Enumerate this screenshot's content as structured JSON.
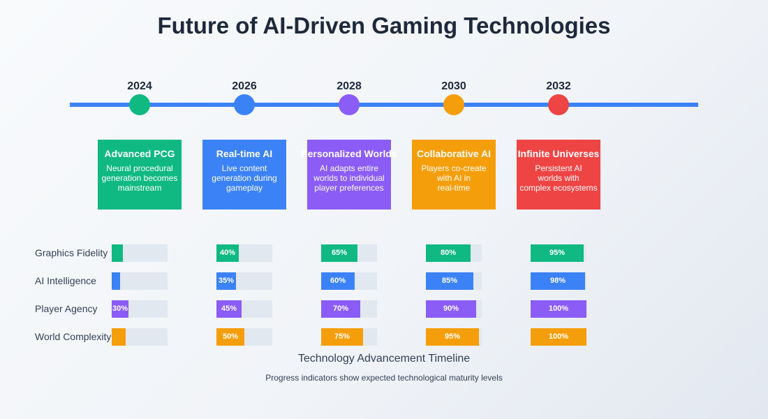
{
  "title": "Future of AI-Driven Gaming Technologies",
  "colors": {
    "green": "#10b981",
    "blue": "#3b82f6",
    "purple": "#8b5cf6",
    "orange": "#f59e0b",
    "red": "#ef4444",
    "track": "#e2e8f0",
    "timeline": "#3b82f6"
  },
  "milestones": [
    {
      "year": "2024",
      "color": "#10b981",
      "title": "Advanced PCG",
      "desc_lines": [
        "Neural procedural",
        "generation becomes",
        "mainstream"
      ]
    },
    {
      "year": "2026",
      "color": "#3b82f6",
      "title": "Real-time AI",
      "desc_lines": [
        "Live content",
        "generation during",
        "gameplay"
      ]
    },
    {
      "year": "2028",
      "color": "#8b5cf6",
      "title": "Personalized Worlds",
      "desc_lines": [
        "AI adapts entire",
        "worlds to individual",
        "player preferences"
      ]
    },
    {
      "year": "2030",
      "color": "#f59e0b",
      "title": "Collaborative AI",
      "desc_lines": [
        "Players co-create",
        "with AI in",
        "real-time"
      ]
    },
    {
      "year": "2032",
      "color": "#ef4444",
      "title": "Infinite Universes",
      "desc_lines": [
        "Persistent AI",
        "worlds with",
        "complex ecosystems"
      ]
    }
  ],
  "metrics": [
    {
      "label": "Graphics Fidelity",
      "color": "#10b981",
      "values": [
        20,
        40,
        65,
        80,
        95
      ],
      "labels": [
        "",
        "40%",
        "65%",
        "80%",
        "95%"
      ]
    },
    {
      "label": "AI Intelligence",
      "color": "#3b82f6",
      "values": [
        15,
        35,
        60,
        85,
        98
      ],
      "labels": [
        "",
        "35%",
        "60%",
        "85%",
        "98%"
      ]
    },
    {
      "label": "Player Agency",
      "color": "#8b5cf6",
      "values": [
        30,
        45,
        70,
        90,
        100
      ],
      "labels": [
        "30%",
        "45%",
        "70%",
        "90%",
        "100%"
      ]
    },
    {
      "label": "World Complexity",
      "color": "#f59e0b",
      "values": [
        25,
        50,
        75,
        95,
        100
      ],
      "labels": [
        "",
        "50%",
        "75%",
        "95%",
        "100%"
      ]
    }
  ],
  "footer": {
    "title": "Technology Advancement Timeline",
    "subtitle": "Progress indicators show expected technological maturity levels"
  }
}
